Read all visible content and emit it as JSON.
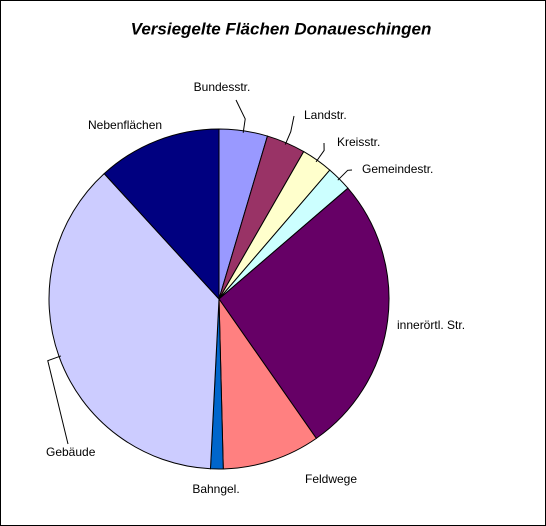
{
  "chart_data": {
    "type": "pie",
    "title": "Versiegelte Flächen Donaueschingen",
    "categories": [
      "Bundesstr.",
      "Landstr.",
      "Kreisstr.",
      "Gemeindestr.",
      "innerörtl. Str.",
      "Feldwege",
      "Bahngel.",
      "Gebäude",
      "Nebenflächen"
    ],
    "values": [
      4.6,
      3.7,
      3.0,
      2.4,
      26.6,
      9.3,
      1.2,
      37.4,
      11.8
    ],
    "colors": [
      "#9999ff",
      "#993366",
      "#ffffcc",
      "#ccffff",
      "#660066",
      "#ff8080",
      "#0066cc",
      "#ccccff",
      "#000080"
    ]
  }
}
